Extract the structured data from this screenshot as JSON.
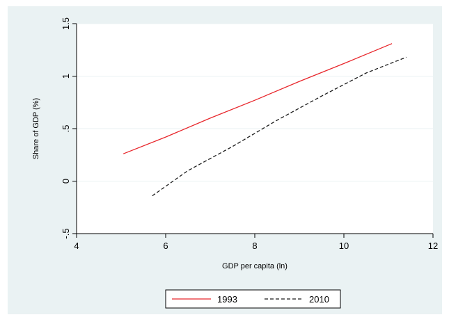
{
  "chart_data": {
    "type": "line",
    "xlabel": "GDP per capita (ln)",
    "ylabel": "Share of GDP (%)",
    "xlim": [
      4,
      12
    ],
    "ylim": [
      -0.5,
      1.5
    ],
    "x_ticks": [
      4,
      6,
      8,
      10,
      12
    ],
    "y_ticks": [
      -0.5,
      0,
      0.5,
      1,
      1.5
    ],
    "x_tick_labels": [
      "4",
      "6",
      "8",
      "10",
      "12"
    ],
    "y_tick_labels": [
      "-.5",
      "0",
      ".5",
      "1",
      "1.5"
    ],
    "grid": "horizontal",
    "legend_position": "bottom",
    "series": [
      {
        "name": "1993",
        "color": "#e8272c",
        "style": "solid",
        "x": [
          5.05,
          6.0,
          7.0,
          8.0,
          9.0,
          10.0,
          11.08
        ],
        "y": [
          0.26,
          0.42,
          0.6,
          0.77,
          0.95,
          1.12,
          1.31
        ]
      },
      {
        "name": "2010",
        "color": "#1a1a1a",
        "style": "dashed",
        "x": [
          5.7,
          6.5,
          7.5,
          8.5,
          9.5,
          10.5,
          11.4
        ],
        "y": [
          -0.14,
          0.1,
          0.33,
          0.58,
          0.81,
          1.03,
          1.18
        ]
      }
    ]
  },
  "colors": {
    "outer_background": "#eaf2f3",
    "plot_background": "#ffffff",
    "gridline": "#eaf2f3"
  }
}
